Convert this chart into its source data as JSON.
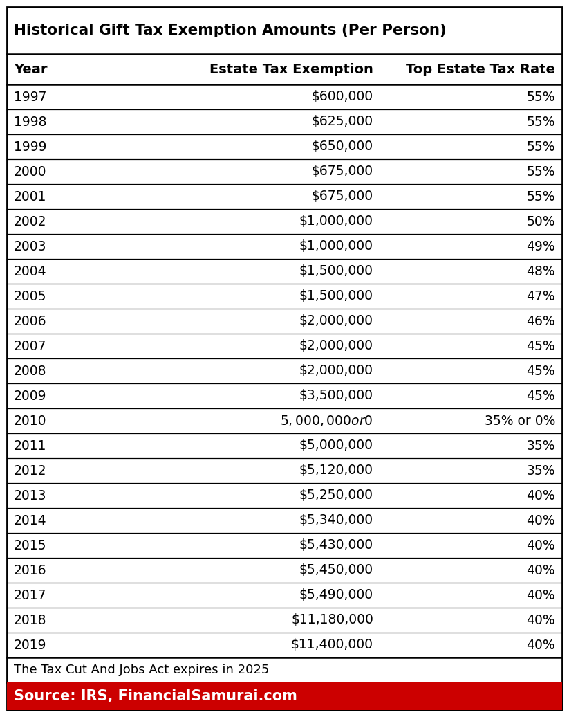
{
  "title": "Historical Gift Tax Exemption Amounts (Per Person)",
  "col_headers": [
    "Year",
    "Estate Tax Exemption",
    "Top Estate Tax Rate"
  ],
  "rows": [
    [
      "1997",
      "$600,000",
      "55%"
    ],
    [
      "1998",
      "$625,000",
      "55%"
    ],
    [
      "1999",
      "$650,000",
      "55%"
    ],
    [
      "2000",
      "$675,000",
      "55%"
    ],
    [
      "2001",
      "$675,000",
      "55%"
    ],
    [
      "2002",
      "$1,000,000",
      "50%"
    ],
    [
      "2003",
      "$1,000,000",
      "49%"
    ],
    [
      "2004",
      "$1,500,000",
      "48%"
    ],
    [
      "2005",
      "$1,500,000",
      "47%"
    ],
    [
      "2006",
      "$2,000,000",
      "46%"
    ],
    [
      "2007",
      "$2,000,000",
      "45%"
    ],
    [
      "2008",
      "$2,000,000",
      "45%"
    ],
    [
      "2009",
      "$3,500,000",
      "45%"
    ],
    [
      "2010",
      "$5,000,000 or $0",
      "35% or 0%"
    ],
    [
      "2011",
      "$5,000,000",
      "35%"
    ],
    [
      "2012",
      "$5,120,000",
      "35%"
    ],
    [
      "2013",
      "$5,250,000",
      "40%"
    ],
    [
      "2014",
      "$5,340,000",
      "40%"
    ],
    [
      "2015",
      "$5,430,000",
      "40%"
    ],
    [
      "2016",
      "$5,450,000",
      "40%"
    ],
    [
      "2017",
      "$5,490,000",
      "40%"
    ],
    [
      "2018",
      "$11,180,000",
      "40%"
    ],
    [
      "2019",
      "$11,400,000",
      "40%"
    ]
  ],
  "footer_note": "The Tax Cut And Jobs Act expires in 2025",
  "source_text": "Source: IRS, FinancialSamurai.com",
  "source_bg": "#cc0000",
  "source_text_color": "#ffffff",
  "border_color": "#000000",
  "header_color": "#000000",
  "row_text_color": "#000000",
  "bg_color": "#ffffff",
  "title_fontsize": 15.5,
  "header_fontsize": 14,
  "row_fontsize": 13.5,
  "footer_fontsize": 13,
  "source_fontsize": 15
}
